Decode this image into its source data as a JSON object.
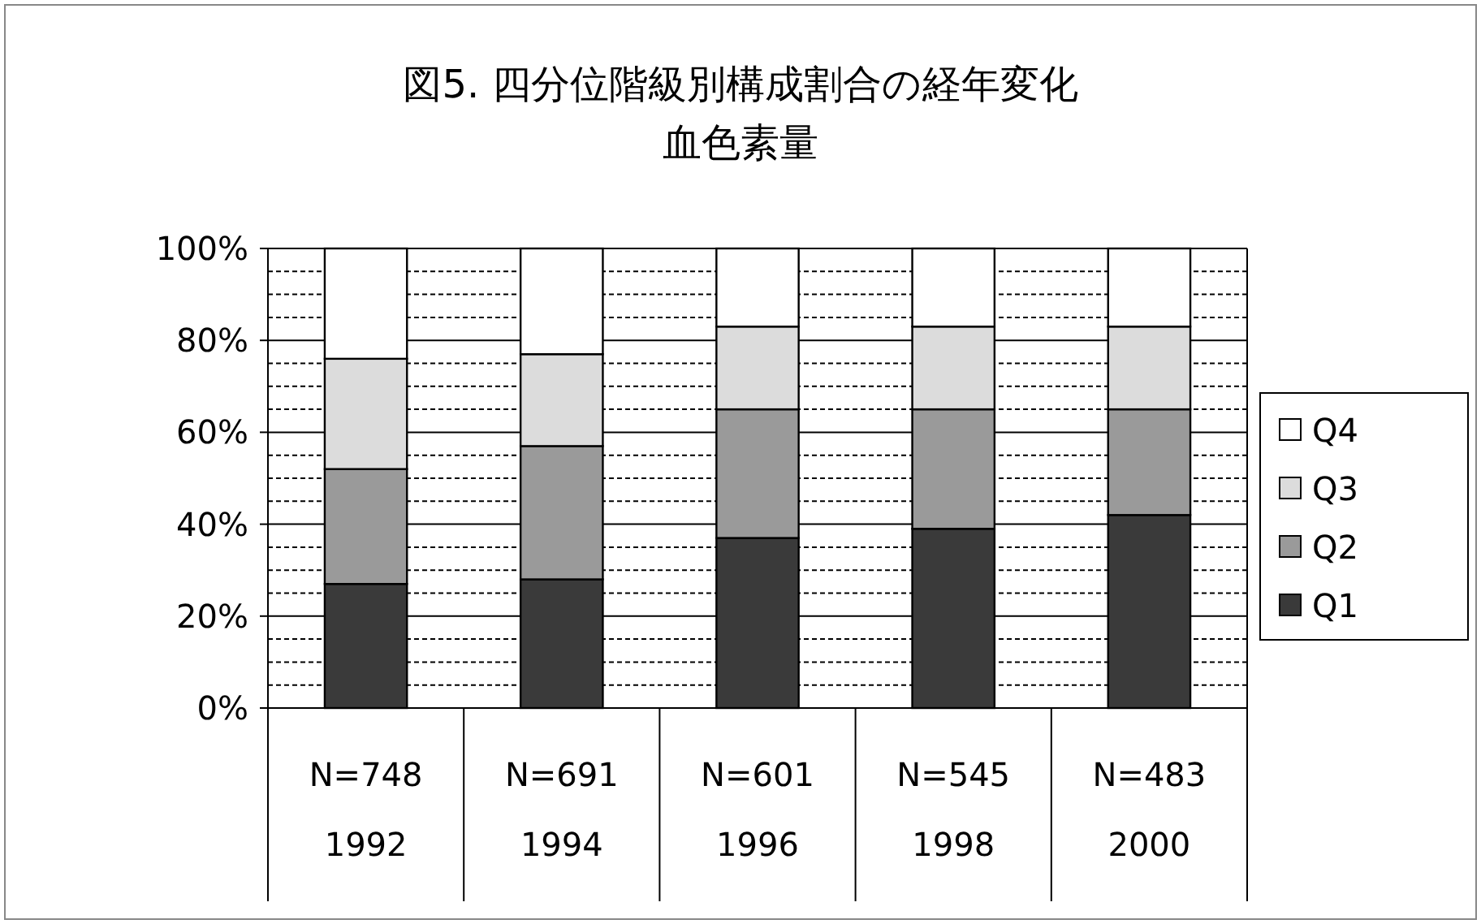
{
  "chart_data": {
    "type": "bar",
    "stacked": true,
    "title": "図5. 四分位階級別構成割合の経年変化",
    "subtitle": "血色素量",
    "categories": [
      "N=748\n1992",
      "N=691\n1994",
      "N=601\n1996",
      "N=545\n1998",
      "N=483\n2000"
    ],
    "series": [
      {
        "name": "Q1",
        "color": "#3a3a3a",
        "values": [
          27,
          28,
          37,
          39,
          42
        ]
      },
      {
        "name": "Q2",
        "color": "#9a9a9a",
        "values": [
          25,
          29,
          28,
          26,
          23
        ]
      },
      {
        "name": "Q3",
        "color": "#dcdcdc",
        "values": [
          24,
          20,
          18,
          18,
          18
        ]
      },
      {
        "name": "Q4",
        "color": "#ffffff",
        "values": [
          24,
          23,
          17,
          17,
          17
        ]
      }
    ],
    "ylim": [
      0,
      100
    ],
    "yticks": [
      {
        "value": 0,
        "label": "0%"
      },
      {
        "value": 5,
        "label": null
      },
      {
        "value": 10,
        "label": null
      },
      {
        "value": 15,
        "label": null
      },
      {
        "value": 20,
        "label": "20%"
      },
      {
        "value": 25,
        "label": null
      },
      {
        "value": 30,
        "label": null
      },
      {
        "value": 35,
        "label": null
      },
      {
        "value": 40,
        "label": "40%"
      },
      {
        "value": 45,
        "label": null
      },
      {
        "value": 50,
        "label": null
      },
      {
        "value": 55,
        "label": null
      },
      {
        "value": 60,
        "label": "60%"
      },
      {
        "value": 65,
        "label": null
      },
      {
        "value": 70,
        "label": null
      },
      {
        "value": 75,
        "label": null
      },
      {
        "value": 80,
        "label": "80%"
      },
      {
        "value": 85,
        "label": null
      },
      {
        "value": 90,
        "label": null
      },
      {
        "value": 95,
        "label": null
      },
      {
        "value": 100,
        "label": "100%"
      }
    ],
    "grid": "y",
    "legend": "right"
  }
}
